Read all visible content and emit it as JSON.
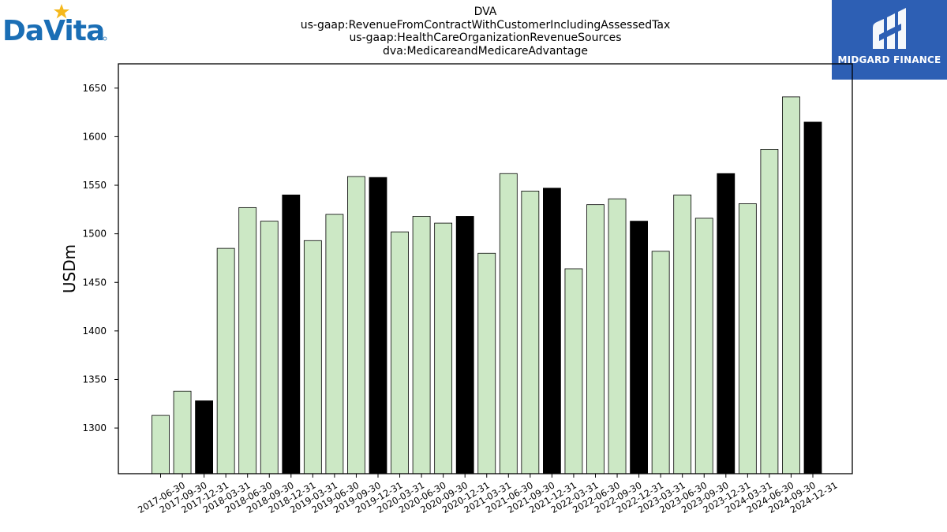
{
  "logos": {
    "left_wordmark": "DaVita",
    "right_brand": "MIDGARD FINANCE"
  },
  "title_lines": [
    "DVA",
    "us-gaap:RevenueFromContractWithCustomerIncludingAssessedTax",
    "us-gaap:HealthCareOrganizationRevenueSources",
    "dva:MedicareandMedicareAdvantage"
  ],
  "colors": {
    "bar_regular": "#cce8c5",
    "bar_year_end": "#000000",
    "logo_blue": "#1a6eb5",
    "logo_star": "#f5b81c",
    "brand_bg": "#2d5fb4"
  },
  "chart_data": {
    "type": "bar",
    "ylabel": "USDm",
    "xlabel": "",
    "ylim": [
      1253,
      1675
    ],
    "yticks": [
      1300,
      1350,
      1400,
      1450,
      1500,
      1550,
      1600,
      1650
    ],
    "grid": false,
    "categories": [
      "2017-06-30",
      "2017-09-30",
      "2017-12-31",
      "2018-03-31",
      "2018-06-30",
      "2018-09-30",
      "2018-12-31",
      "2019-03-31",
      "2019-06-30",
      "2019-09-30",
      "2019-12-31",
      "2020-03-31",
      "2020-06-30",
      "2020-09-30",
      "2020-12-31",
      "2021-03-31",
      "2021-06-30",
      "2021-09-30",
      "2021-12-31",
      "2022-03-31",
      "2022-06-30",
      "2022-09-30",
      "2022-12-31",
      "2023-03-31",
      "2023-06-30",
      "2023-09-30",
      "2023-12-31",
      "2024-03-31",
      "2024-06-30",
      "2024-09-30",
      "2024-12-31"
    ],
    "values": [
      1313,
      1338,
      1328,
      1485,
      1527,
      1513,
      1540,
      1493,
      1520,
      1559,
      1558,
      1502,
      1518,
      1511,
      1518,
      1480,
      1562,
      1544,
      1547,
      1464,
      1530,
      1536,
      1513,
      1482,
      1540,
      1516,
      1562,
      1531,
      1587,
      1641,
      1615
    ],
    "highlight_year_end": true
  }
}
